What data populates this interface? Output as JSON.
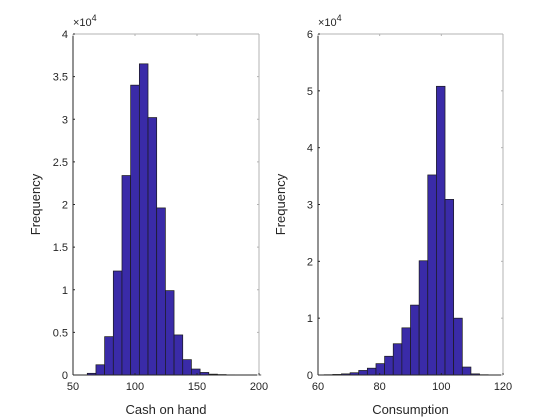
{
  "figure": {
    "background": "#ffffff"
  },
  "style": {
    "bar_fill": "#3a2ba8",
    "bar_edge": "#1a1a1a",
    "axis_color": "#262626",
    "frame_color": "#b3b3b3"
  },
  "chart_data": [
    {
      "type": "bar",
      "subtype": "histogram",
      "title": "",
      "xlabel": "Cash on hand",
      "ylabel": "Frequency",
      "xlim": [
        50,
        200
      ],
      "ylim": [
        0,
        4
      ],
      "y_exponent_label": "×10",
      "y_exponent": "4",
      "xticks": [
        50,
        100,
        150,
        200
      ],
      "yticks": [
        0,
        0.5,
        1,
        1.5,
        2,
        2.5,
        3,
        3.5,
        4
      ],
      "grid": false,
      "bin_edges": [
        61.5,
        68.5,
        75.5,
        82.5,
        89.5,
        96.5,
        103.5,
        110.5,
        117.5,
        124.5,
        131.5,
        138.5,
        145.5,
        152.5,
        159.5,
        166.5,
        173.5,
        180.5,
        187.5,
        194.5,
        201.5
      ],
      "counts": [
        0.02,
        0.12,
        0.45,
        1.22,
        2.34,
        3.4,
        3.65,
        3.02,
        1.96,
        0.99,
        0.47,
        0.18,
        0.07,
        0.03,
        0.01,
        0.005,
        0.002,
        0.001,
        0.0005,
        0.0002
      ]
    },
    {
      "type": "bar",
      "subtype": "histogram",
      "title": "",
      "xlabel": "Consumption",
      "ylabel": "Frequency",
      "xlim": [
        60,
        120
      ],
      "ylim": [
        0,
        6
      ],
      "y_exponent_label": "×10",
      "y_exponent": "4",
      "xticks": [
        60,
        80,
        100,
        120
      ],
      "yticks": [
        0,
        1,
        2,
        3,
        4,
        5,
        6
      ],
      "grid": false,
      "bin_edges": [
        62.0,
        64.8,
        67.6,
        70.4,
        73.2,
        76.0,
        78.8,
        81.6,
        84.4,
        87.2,
        90.0,
        92.8,
        95.6,
        98.4,
        101.2,
        104.0,
        106.8,
        109.6,
        112.4,
        115.2,
        118.0
      ],
      "counts": [
        0.005,
        0.01,
        0.02,
        0.04,
        0.08,
        0.12,
        0.2,
        0.33,
        0.55,
        0.83,
        1.23,
        2.01,
        3.52,
        5.08,
        3.09,
        1.0,
        0.14,
        0.02,
        0.005,
        0.001
      ]
    }
  ]
}
